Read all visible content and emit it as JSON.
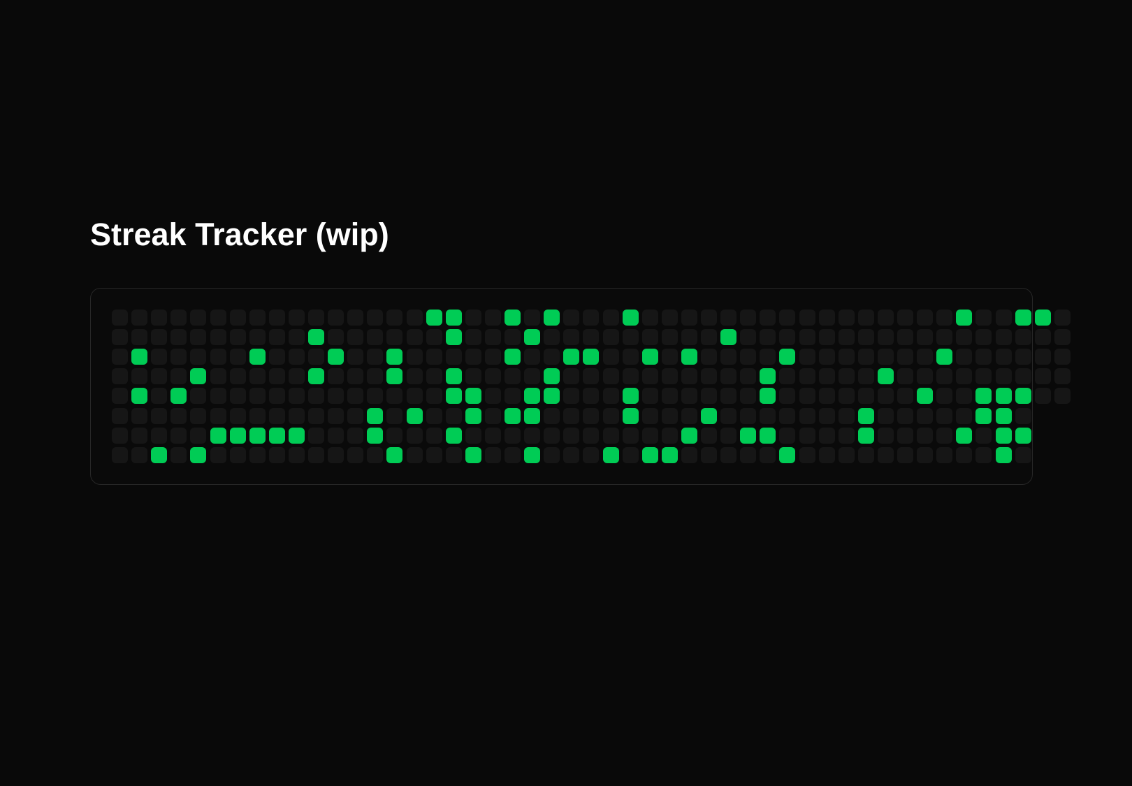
{
  "page": {
    "title": "Streak Tracker (wip)"
  },
  "colors": {
    "background": "#090909",
    "empty_cell": "#161616",
    "active_cell": "#00cc55"
  },
  "tracker": {
    "rows": [
      "0000000000000000110010100010000000000000000100110",
      "0000000000100000010001000000000100000000000000000",
      "0100000100010010000010011001010000100000001000000",
      "0000100000100010010000100000000001000001000000000",
      "0101000000000000011001100010000001000000010011100",
      "00000000000001010010110000100010000000100000110",
      "00000111110001000100000000000100110000100001011",
      "00101000000000100010010001011000001000000000010"
    ]
  }
}
